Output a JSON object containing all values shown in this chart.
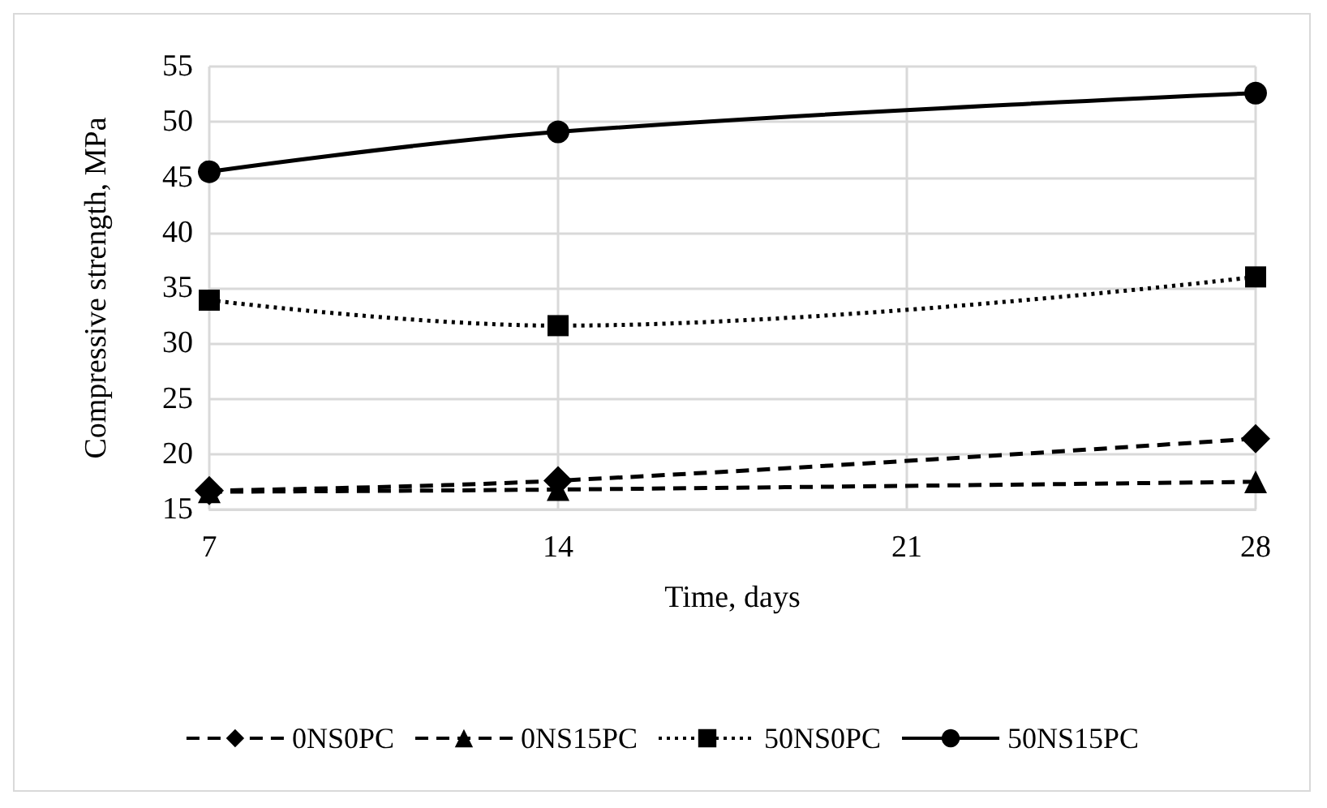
{
  "chart_data": {
    "type": "line",
    "xlabel": "Time, days",
    "ylabel": "Compressive strength, MPa",
    "x": [
      7,
      14,
      28
    ],
    "xlim": [
      7,
      28
    ],
    "xticks": [
      7,
      14,
      21,
      28
    ],
    "ylim": [
      15,
      55
    ],
    "yticks": [
      15,
      20,
      25,
      30,
      35,
      40,
      45,
      50,
      55
    ],
    "grid": true,
    "legend": "bottom",
    "series": [
      {
        "name": "0NS0PC",
        "color": "#000000",
        "marker": "diamond",
        "line_style": "dashed",
        "values": [
          16.7,
          17.6,
          21.4
        ]
      },
      {
        "name": "0NS15PC",
        "color": "#000000",
        "marker": "triangle",
        "line_style": "dashed",
        "values": [
          16.6,
          16.8,
          17.5
        ]
      },
      {
        "name": "50NS0PC",
        "color": "#000000",
        "marker": "square",
        "line_style": "dotted",
        "values": [
          33.9,
          31.6,
          36.0
        ]
      },
      {
        "name": "50NS15PC",
        "color": "#000000",
        "marker": "circle",
        "line_style": "solid",
        "values": [
          45.5,
          49.1,
          52.6
        ]
      }
    ]
  }
}
